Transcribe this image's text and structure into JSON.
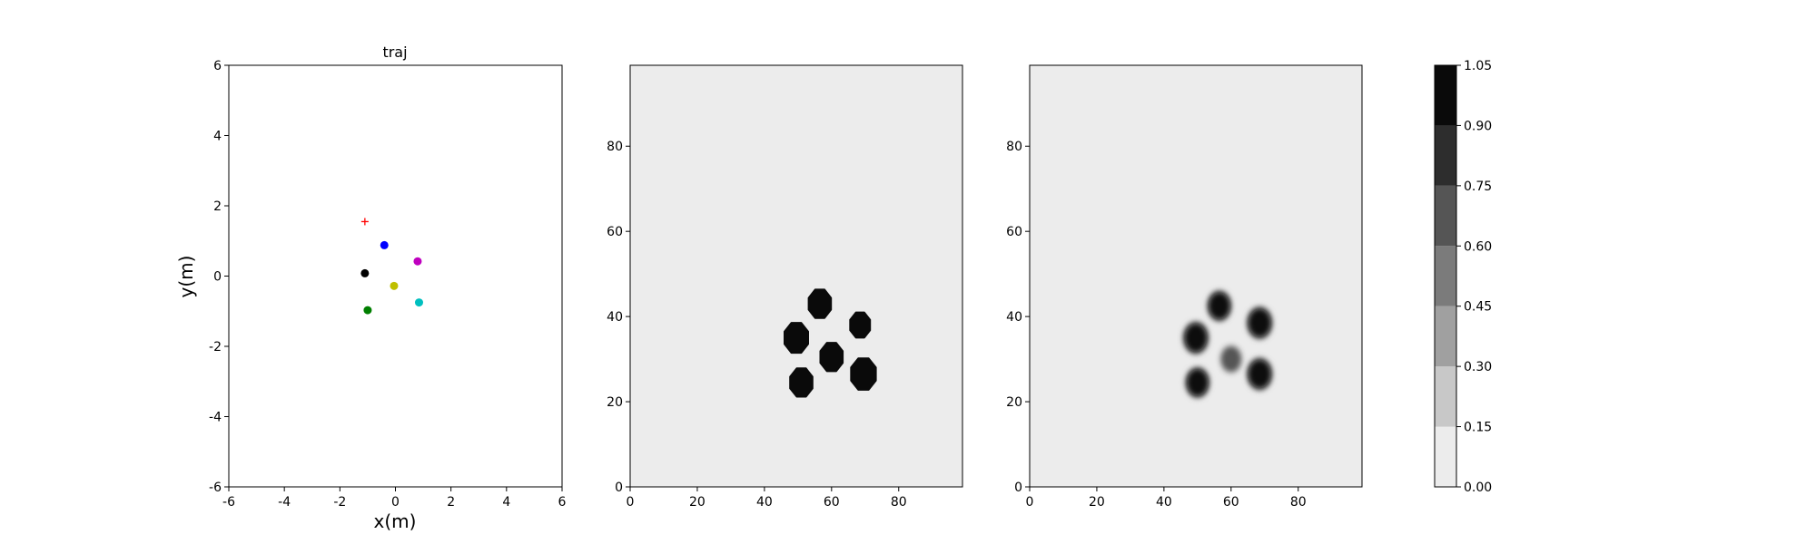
{
  "chart_data": [
    {
      "type": "scatter",
      "title": "traj",
      "xlabel": "x(m)",
      "ylabel": "y(m)",
      "xlim": [
        -6,
        6
      ],
      "ylim": [
        -6,
        6
      ],
      "xticks": [
        -6,
        -4,
        -2,
        0,
        2,
        4,
        6
      ],
      "yticks": [
        -6,
        -4,
        -2,
        0,
        2,
        4,
        6
      ],
      "grid": false,
      "points": [
        {
          "x": -1.1,
          "y": 1.55,
          "marker": "plus",
          "color": "#ff0000"
        },
        {
          "x": -0.4,
          "y": 0.88,
          "marker": "circle",
          "color": "#0000ff"
        },
        {
          "x": 0.8,
          "y": 0.42,
          "marker": "circle",
          "color": "#bf00bf"
        },
        {
          "x": -1.1,
          "y": 0.08,
          "marker": "circle",
          "color": "#000000"
        },
        {
          "x": -0.05,
          "y": -0.28,
          "marker": "circle",
          "color": "#bfbf00"
        },
        {
          "x": 0.85,
          "y": -0.75,
          "marker": "circle",
          "color": "#00bfbf"
        },
        {
          "x": -1.0,
          "y": -0.97,
          "marker": "circle",
          "color": "#007f00"
        }
      ]
    },
    {
      "type": "heatmap",
      "xlim": [
        0,
        99
      ],
      "ylim": [
        0,
        99
      ],
      "xticks": [
        0,
        20,
        40,
        60,
        80
      ],
      "yticks": [
        0,
        20,
        40,
        60,
        80
      ],
      "background_level": 0.05,
      "blobs": [
        {
          "cx": 56.5,
          "cy": 43,
          "r": 3.6,
          "value": 1.0,
          "soft": false
        },
        {
          "cx": 68.5,
          "cy": 38,
          "r": 3.2,
          "value": 1.0,
          "soft": false
        },
        {
          "cx": 49.5,
          "cy": 35,
          "r": 3.8,
          "value": 1.0,
          "soft": false
        },
        {
          "cx": 60,
          "cy": 30.5,
          "r": 3.6,
          "value": 1.0,
          "soft": false
        },
        {
          "cx": 69.5,
          "cy": 26.5,
          "r": 4.0,
          "value": 1.0,
          "soft": false
        },
        {
          "cx": 51,
          "cy": 24.5,
          "r": 3.6,
          "value": 1.0,
          "soft": false
        }
      ]
    },
    {
      "type": "heatmap",
      "xlim": [
        0,
        99
      ],
      "ylim": [
        0,
        99
      ],
      "xticks": [
        0,
        20,
        40,
        60,
        80
      ],
      "yticks": [
        0,
        20,
        40,
        60,
        80
      ],
      "background_level": 0.05,
      "blobs": [
        {
          "cx": 56.5,
          "cy": 42.5,
          "r": 3.6,
          "value": 1.0,
          "soft": true
        },
        {
          "cx": 68.5,
          "cy": 38.5,
          "r": 3.8,
          "value": 1.0,
          "soft": true
        },
        {
          "cx": 49.5,
          "cy": 35,
          "r": 3.8,
          "value": 1.0,
          "soft": true
        },
        {
          "cx": 60,
          "cy": 30,
          "r": 3.4,
          "value": 0.6,
          "soft": true
        },
        {
          "cx": 68.5,
          "cy": 26.5,
          "r": 3.8,
          "value": 1.0,
          "soft": true
        },
        {
          "cx": 50,
          "cy": 24.5,
          "r": 3.6,
          "value": 1.0,
          "soft": true
        }
      ]
    }
  ],
  "colorbar": {
    "levels": [
      0.0,
      0.15,
      0.3,
      0.45,
      0.6,
      0.75,
      0.9,
      1.05
    ],
    "tick_labels": [
      "0.00",
      "0.15",
      "0.30",
      "0.45",
      "0.60",
      "0.75",
      "0.90",
      "1.05"
    ],
    "colors": [
      "#ececec",
      "#c8c8c8",
      "#a0a0a0",
      "#7b7b7b",
      "#555555",
      "#2d2d2d",
      "#0a0a0a"
    ]
  }
}
